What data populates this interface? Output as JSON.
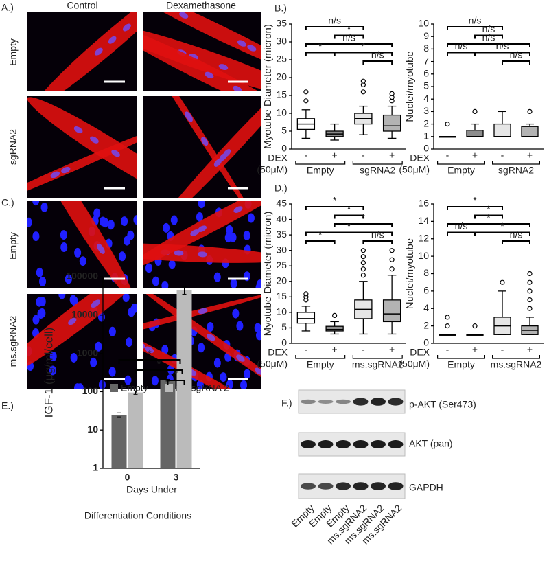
{
  "panels": {
    "a": {
      "label": "A.)",
      "columns": [
        "Control",
        "Dexamethasone"
      ],
      "rows": [
        "Empty",
        "sgRNA2"
      ]
    },
    "c": {
      "label": "C.)",
      "columns": [
        "Control",
        "Dexamethasone"
      ],
      "rows": [
        "Empty",
        "ms.sgRNA2"
      ]
    },
    "f": {
      "label": "F.)",
      "blots": [
        "p-AKT (Ser473)",
        "AKT (pan)",
        "GAPDH"
      ],
      "lanes": [
        "Empty",
        "Empty",
        "Empty",
        "ms.sgRNA2",
        "ms.sgRNA2",
        "ms.sgRNA2"
      ]
    }
  },
  "chart_data": [
    {
      "type": "box",
      "panel_label": "B.)",
      "ylabel": "Myotube Diameter (micron)",
      "ylim": [
        0,
        35
      ],
      "yticks": [
        0,
        5,
        10,
        15,
        20,
        25,
        30,
        35
      ],
      "categories": [
        "-",
        "+",
        "-",
        "+"
      ],
      "groups": [
        "Empty",
        "sgRNA2"
      ],
      "x_label": [
        "DEX",
        "(50μM)"
      ],
      "colors": [
        "#ffffff",
        "#8c8c8c",
        "#e6e6e6",
        "#b3b3b3"
      ],
      "boxes": [
        {
          "min": 3,
          "q1": 5.5,
          "median": 7,
          "q3": 8.5,
          "max": 11,
          "outliers": [
            13.5,
            16
          ]
        },
        {
          "min": 2.5,
          "q1": 3.5,
          "median": 4.2,
          "q3": 5,
          "max": 7,
          "outliers": []
        },
        {
          "min": 4,
          "q1": 7,
          "median": 8.5,
          "q3": 10,
          "max": 12,
          "outliers": [
            16,
            18,
            19
          ]
        },
        {
          "min": 3,
          "q1": 5,
          "median": 6.5,
          "q3": 9.5,
          "max": 12,
          "outliers": [
            13.5,
            14.5,
            15.5
          ]
        }
      ],
      "brackets": [
        {
          "from": 0,
          "to": 2,
          "label": "n/s"
        },
        {
          "from": 1,
          "to": 2,
          "label": "*"
        },
        {
          "from": 0,
          "to": 3,
          "label": "n/s"
        },
        {
          "from": 1,
          "to": 3,
          "label": "*"
        },
        {
          "from": 0,
          "to": 1,
          "label": "*"
        },
        {
          "from": 2,
          "to": 3,
          "label": "n/s"
        }
      ]
    },
    {
      "type": "box",
      "ylabel": "Nuclei/myotube",
      "ylim": [
        0,
        10
      ],
      "yticks": [
        0,
        1,
        2,
        3,
        4,
        5,
        6,
        7,
        8,
        9,
        10
      ],
      "categories": [
        "-",
        "+",
        "-",
        "+"
      ],
      "groups": [
        "Empty",
        "sgRNA2"
      ],
      "x_label": [
        "DEX",
        "(50μM)"
      ],
      "colors": [
        "#ffffff",
        "#8c8c8c",
        "#e6e6e6",
        "#b3b3b3"
      ],
      "boxes": [
        {
          "min": 1,
          "q1": 1,
          "median": 1,
          "q3": 1,
          "max": 1,
          "outliers": [
            2
          ]
        },
        {
          "min": 1,
          "q1": 1,
          "median": 1,
          "q3": 1.5,
          "max": 2,
          "outliers": [
            3
          ]
        },
        {
          "min": 1,
          "q1": 1,
          "median": 1,
          "q3": 2,
          "max": 3,
          "outliers": []
        },
        {
          "min": 1,
          "q1": 1,
          "median": 1,
          "q3": 1.8,
          "max": 2,
          "outliers": [
            3
          ]
        }
      ],
      "brackets": [
        {
          "from": 0,
          "to": 2,
          "label": "n/s"
        },
        {
          "from": 1,
          "to": 2,
          "label": "n/s"
        },
        {
          "from": 0,
          "to": 3,
          "label": "n/s"
        },
        {
          "from": 1,
          "to": 3,
          "label": "n/s"
        },
        {
          "from": 0,
          "to": 1,
          "label": "n/s"
        },
        {
          "from": 2,
          "to": 3,
          "label": "n/s"
        }
      ]
    },
    {
      "type": "box",
      "panel_label": "D.)",
      "ylabel": "Myotube Diameter (micron)",
      "ylim": [
        0,
        45
      ],
      "yticks": [
        0,
        5,
        10,
        15,
        20,
        25,
        30,
        35,
        40,
        45
      ],
      "categories": [
        "-",
        "+",
        "-",
        "+"
      ],
      "groups": [
        "Empty",
        "ms.sgRNA2"
      ],
      "x_label": [
        "DEX",
        "(50μM)"
      ],
      "colors": [
        "#ffffff",
        "#8c8c8c",
        "#e6e6e6",
        "#b3b3b3"
      ],
      "boxes": [
        {
          "min": 4,
          "q1": 6.5,
          "median": 8,
          "q3": 10,
          "max": 12,
          "outliers": [
            14,
            15,
            16
          ]
        },
        {
          "min": 3,
          "q1": 4,
          "median": 4.5,
          "q3": 5.5,
          "max": 7,
          "outliers": [
            9
          ]
        },
        {
          "min": 3,
          "q1": 8,
          "median": 11,
          "q3": 14,
          "max": 20,
          "outliers": [
            22,
            24,
            26,
            28,
            30
          ]
        },
        {
          "min": 3,
          "q1": 7,
          "median": 9.5,
          "q3": 14,
          "max": 22,
          "outliers": [
            24,
            27,
            30
          ]
        }
      ],
      "brackets": [
        {
          "from": 0,
          "to": 2,
          "label": "*"
        },
        {
          "from": 1,
          "to": 2,
          "label": "*"
        },
        {
          "from": 1,
          "to": 3,
          "label": "*"
        },
        {
          "from": 0,
          "to": 3,
          "label": "*"
        },
        {
          "from": 0,
          "to": 1,
          "label": "*"
        },
        {
          "from": 2,
          "to": 3,
          "label": "n/s"
        }
      ]
    },
    {
      "type": "box",
      "ylabel": "Nuclei/myotube",
      "ylim": [
        0,
        16
      ],
      "yticks": [
        0,
        2,
        4,
        6,
        8,
        10,
        12,
        14,
        16
      ],
      "categories": [
        "-",
        "+",
        "-",
        "+"
      ],
      "groups": [
        "Empty",
        "ms.sgRNA2"
      ],
      "x_label": [
        "DEX",
        "(50μM)"
      ],
      "colors": [
        "#ffffff",
        "#8c8c8c",
        "#e6e6e6",
        "#b3b3b3"
      ],
      "boxes": [
        {
          "min": 1,
          "q1": 1,
          "median": 1,
          "q3": 1,
          "max": 1,
          "outliers": [
            2,
            3
          ]
        },
        {
          "min": 1,
          "q1": 1,
          "median": 1,
          "q3": 1,
          "max": 1,
          "outliers": [
            2
          ]
        },
        {
          "min": 1,
          "q1": 1,
          "median": 2,
          "q3": 3,
          "max": 6,
          "outliers": [
            7
          ]
        },
        {
          "min": 1,
          "q1": 1,
          "median": 1.5,
          "q3": 2,
          "max": 3,
          "outliers": [
            4,
            5,
            6,
            7,
            8
          ]
        }
      ],
      "brackets": [
        {
          "from": 0,
          "to": 2,
          "label": "*"
        },
        {
          "from": 1,
          "to": 2,
          "label": "*"
        },
        {
          "from": 0,
          "to": 3,
          "label": "*"
        },
        {
          "from": 1,
          "to": 3,
          "label": "*"
        },
        {
          "from": 0,
          "to": 1,
          "label": "n/s"
        },
        {
          "from": 2,
          "to": 3,
          "label": "n/s"
        }
      ]
    },
    {
      "type": "bar",
      "panel_label": "E.)",
      "ylabel": "IGF-1 (μg/ml/cell)",
      "log_scale": true,
      "ylim": [
        1,
        100000
      ],
      "yticks": [
        1,
        10,
        100,
        1000,
        10000,
        100000
      ],
      "categories": [
        "0",
        "3"
      ],
      "x_label": [
        "Days Under",
        "Differentiation Conditions"
      ],
      "series": [
        {
          "name": "Empty",
          "color": "#666666",
          "values": [
            25,
            200
          ],
          "errors": [
            3,
            10
          ]
        },
        {
          "name": "ms.sgRNA 2",
          "color": "#bbbbbb",
          "values": [
            95,
            45000
          ],
          "errors": [
            10,
            10000
          ]
        }
      ],
      "brackets": [
        {
          "from": [
            0,
            0
          ],
          "to": [
            1,
            1
          ],
          "label": "*"
        },
        {
          "from": [
            1,
            0
          ],
          "to": [
            1,
            1
          ],
          "label": "*"
        },
        {
          "from": [
            0,
            1
          ],
          "to": [
            1,
            1
          ],
          "label": "*"
        }
      ]
    }
  ]
}
